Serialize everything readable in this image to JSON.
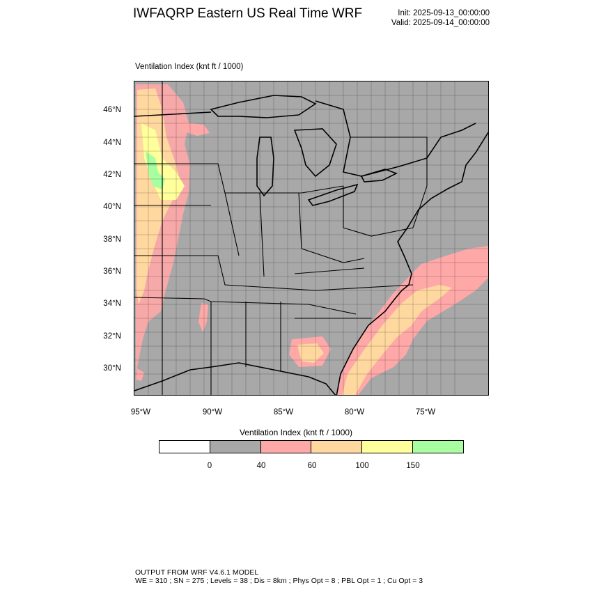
{
  "header": {
    "title": "IWFAQRP Eastern US Real Time WRF",
    "init": "Init: 2025-09-13_00:00:00",
    "valid": "Valid: 2025-09-14_00:00:00"
  },
  "map": {
    "field_label": "Ventilation Index   (knt ft / 1000)",
    "lat_labels": [
      "46°N",
      "44°N",
      "42°N",
      "40°N",
      "38°N",
      "36°N",
      "34°N",
      "32°N",
      "30°N"
    ],
    "lon_labels": [
      "95°W",
      "90°W",
      "85°W",
      "80°W",
      "75°W"
    ],
    "background_color": "#a8a8a8"
  },
  "legend": {
    "title": "Ventilation Index  (knt ft / 1000)",
    "ticks": [
      "0",
      "40",
      "60",
      "100",
      "150"
    ],
    "colors": [
      "#ffffff",
      "#a8a8a8",
      "#ffa8a8",
      "#ffd8a0",
      "#ffff9c",
      "#a8ffa0"
    ]
  },
  "footer": {
    "line1": "OUTPUT FROM WRF V4.6.1 MODEL",
    "line2": "WE = 310 ; SN = 275 ; Levels = 38 ; Dis = 8km ; Phys Opt = 8 ; PBL Opt = 1 ; Cu Opt = 3"
  }
}
